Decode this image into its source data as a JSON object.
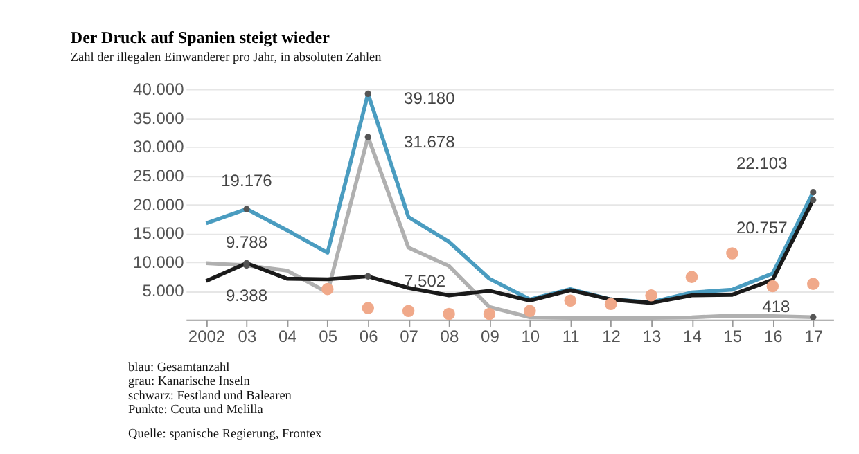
{
  "chart_data": {
    "type": "line",
    "title": "Der Druck auf Spanien steigt wieder",
    "subtitle": "Zahl der illegalen Einwanderer pro Jahr, in absoluten Zahlen",
    "categories": [
      "2002",
      "03",
      "04",
      "05",
      "06",
      "07",
      "08",
      "09",
      "10",
      "11",
      "12",
      "13",
      "14",
      "15",
      "16",
      "17"
    ],
    "series": [
      {
        "color": "#4a9cc0",
        "values": [
          16700,
          19176,
          15500,
          11600,
          39180,
          17800,
          13500,
          7100,
          3500,
          5300,
          3500,
          3000,
          4700,
          5200,
          8000,
          22103
        ]
      },
      {
        "color": "#b0b0b0",
        "values": [
          9800,
          9388,
          8500,
          4700,
          31678,
          12500,
          9300,
          2200,
          400,
          300,
          300,
          300,
          400,
          700,
          600,
          418
        ]
      },
      {
        "color": "#1a1a1a",
        "values": [
          6700,
          9788,
          7100,
          7000,
          7502,
          5500,
          4200,
          5000,
          3300,
          5100,
          3500,
          2900,
          4200,
          4300,
          6900,
          20757
        ]
      },
      {
        "type": "scatter",
        "marker": "circle",
        "color": "#f0a98a",
        "values": [
          null,
          null,
          null,
          5300,
          2000,
          1500,
          1000,
          1000,
          1500,
          3300,
          2700,
          4200,
          7400,
          11500,
          5800,
          6200
        ]
      }
    ],
    "ylim": [
      0,
      40000
    ],
    "yticks": [
      {
        "value": 5000,
        "label": "5.000"
      },
      {
        "value": 10000,
        "label": "10.000"
      },
      {
        "value": 15000,
        "label": "15.000"
      },
      {
        "value": 20000,
        "label": "20.000"
      },
      {
        "value": 25000,
        "label": "25.000"
      },
      {
        "value": 30000,
        "label": "30.000"
      },
      {
        "value": 35000,
        "label": "35.000"
      },
      {
        "value": 40000,
        "label": "40.000"
      }
    ],
    "grid": "y",
    "marker": "none",
    "line_style": "solid",
    "annotations": [
      {
        "text": "39.180",
        "x": "06",
        "y": 39180
      },
      {
        "text": "31.678",
        "x": "06",
        "y": 31678
      },
      {
        "text": "19.176",
        "x": "03",
        "y": 19176
      },
      {
        "text": "9.788",
        "x": "03",
        "y": 9788
      },
      {
        "text": "9.388",
        "x": "03",
        "y": 9388
      },
      {
        "text": "7.502",
        "x": "06",
        "y": 7502
      },
      {
        "text": "22.103",
        "x": "17",
        "y": 22103
      },
      {
        "text": "20.757",
        "x": "17",
        "y": 20757
      },
      {
        "text": "418",
        "x": "17",
        "y": 418
      },
      "blau: Gesamtanzahl",
      "grau: Kanarische Inseln",
      "schwarz: Festland und Balearen",
      "Punkte: Ceuta und Melilla",
      "Quelle: spanische Regierung, Frontex"
    ]
  }
}
